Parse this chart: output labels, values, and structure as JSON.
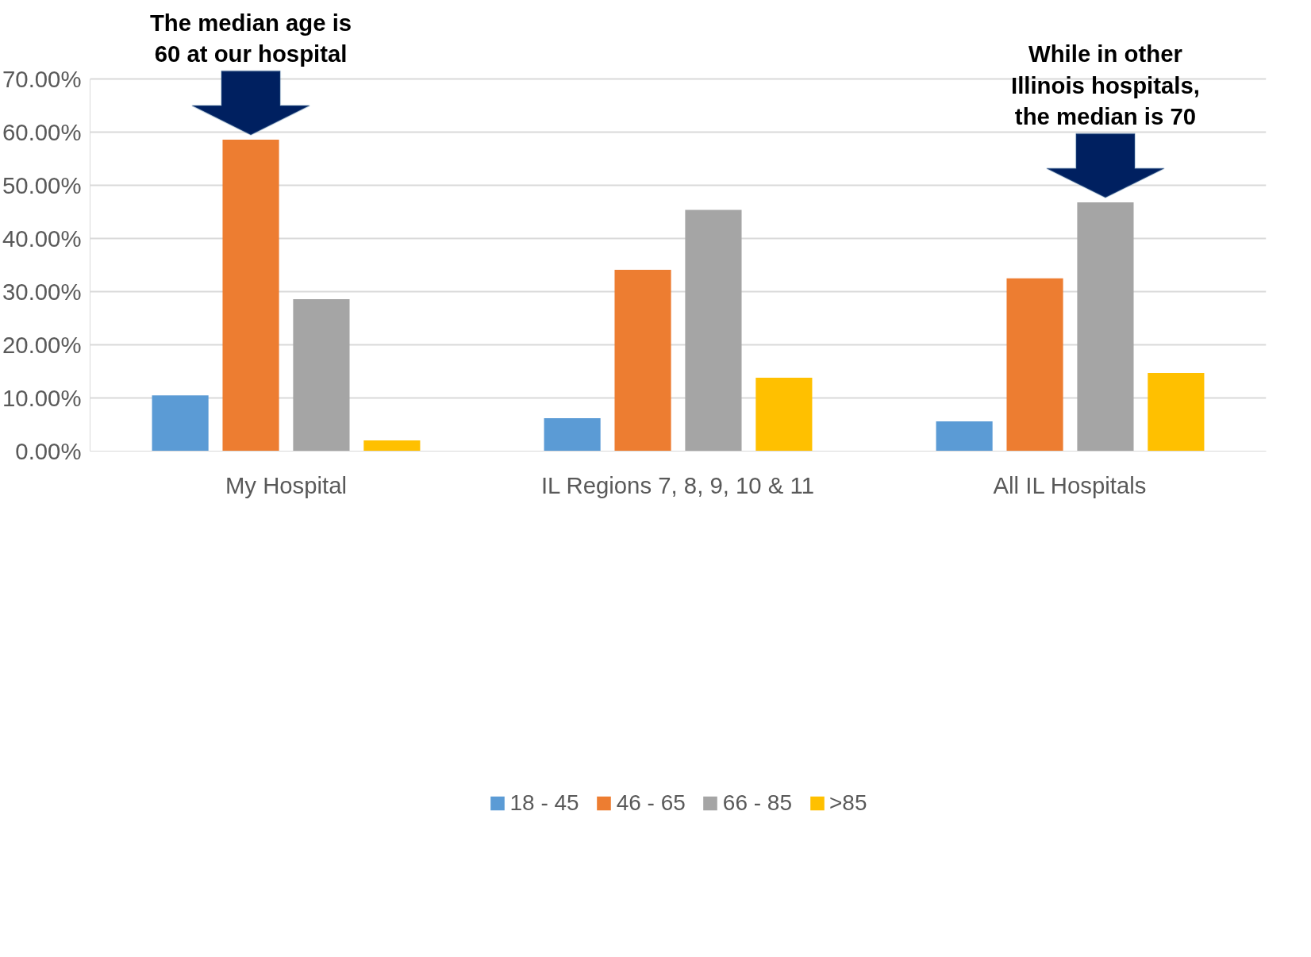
{
  "chart_data": {
    "type": "bar",
    "categories": [
      "My Hospital",
      "IL Regions 7, 8, 9, 10 & 11",
      "All IL Hospitals"
    ],
    "series": [
      {
        "name": "18 - 45",
        "color": "#5b9bd5",
        "values": [
          10.5,
          6.2,
          5.6
        ]
      },
      {
        "name": "46 - 65",
        "color": "#ed7d31",
        "values": [
          58.6,
          34.1,
          32.5
        ]
      },
      {
        "name": "66 - 85",
        "color": "#a5a5a5",
        "values": [
          28.6,
          45.4,
          46.8
        ]
      },
      {
        "name": ">85",
        "color": "#ffc000",
        "values": [
          2.0,
          13.8,
          14.7
        ]
      }
    ],
    "ylim": [
      0,
      70
    ],
    "yticks": [
      {
        "value": 0,
        "label": "0.00%"
      },
      {
        "value": 10,
        "label": "10.00%"
      },
      {
        "value": 20,
        "label": "20.00%"
      },
      {
        "value": 30,
        "label": "30.00%"
      },
      {
        "value": 40,
        "label": "40.00%"
      },
      {
        "value": 50,
        "label": "50.00%"
      },
      {
        "value": 60,
        "label": "60.00%"
      },
      {
        "value": 70,
        "label": "70.00%"
      }
    ],
    "grid": "y",
    "legend": "bottom",
    "annotations": [
      "The median age is\n60 at our hospital",
      "While in other\nIllinois hospitals,\nthe median is 70"
    ]
  }
}
